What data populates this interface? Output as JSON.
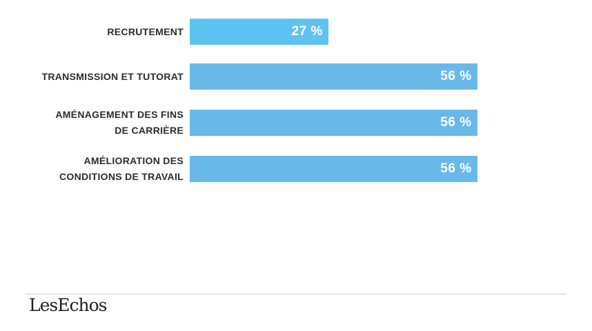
{
  "chart_data": {
    "type": "bar",
    "orientation": "horizontal",
    "categories": [
      "RECRUTEMENT",
      "TRANSMISSION ET TUTORAT",
      "AMÉNAGEMENT DES FINS\nDE CARRIÈRE",
      "AMÉLIORATION DES\nCONDITIONS DE TRAVAIL"
    ],
    "values": [
      27,
      56,
      56,
      56
    ],
    "value_labels": [
      "27 %",
      "56 %",
      "56 %",
      "56 %"
    ],
    "xlim": [
      0,
      100
    ],
    "grid": false,
    "colors": [
      "#5fc3f0",
      "#68b9ea",
      "#68b9ea",
      "#68b9ea"
    ]
  },
  "footer": {
    "logo": "LesEchos"
  }
}
